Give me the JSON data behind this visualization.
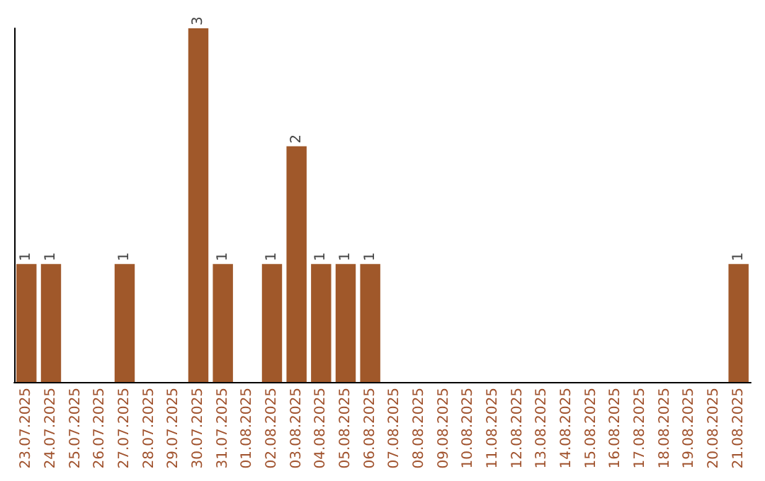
{
  "chart_data": {
    "type": "bar",
    "categories": [
      "23.07.2025",
      "24.07.2025",
      "25.07.2025",
      "26.07.2025",
      "27.07.2025",
      "28.07.2025",
      "29.07.2025",
      "30.07.2025",
      "31.07.2025",
      "01.08.2025",
      "02.08.2025",
      "03.08.2025",
      "04.08.2025",
      "05.08.2025",
      "06.08.2025",
      "07.08.2025",
      "08.08.2025",
      "09.08.2025",
      "10.08.2025",
      "11.08.2025",
      "12.08.2025",
      "13.08.2025",
      "14.08.2025",
      "15.08.2025",
      "16.08.2025",
      "17.08.2025",
      "18.08.2025",
      "19.08.2025",
      "20.08.2025",
      "21.08.2025"
    ],
    "values": [
      1,
      1,
      0,
      0,
      1,
      0,
      0,
      3,
      1,
      0,
      1,
      2,
      1,
      1,
      1,
      0,
      0,
      0,
      0,
      0,
      0,
      0,
      0,
      0,
      0,
      0,
      0,
      0,
      0,
      1
    ],
    "value_labels": [
      "1",
      "1",
      null,
      null,
      "1",
      null,
      null,
      "3",
      "1",
      null,
      "1",
      "2",
      "1",
      "1",
      "1",
      null,
      null,
      null,
      null,
      null,
      null,
      null,
      null,
      null,
      null,
      null,
      null,
      null,
      null,
      "1"
    ],
    "color": "#a0582a"
  }
}
